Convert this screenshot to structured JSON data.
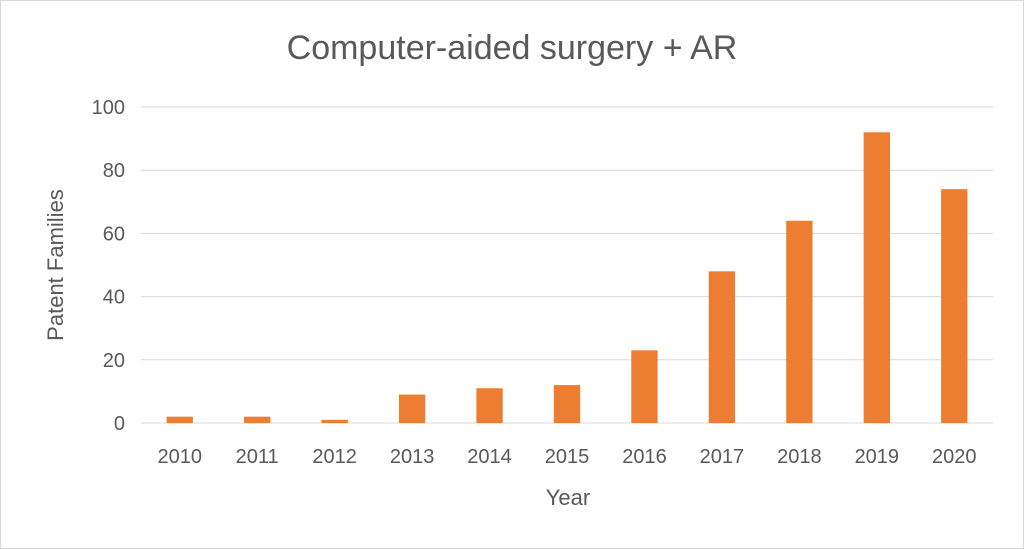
{
  "chart_data": {
    "type": "bar",
    "title": "Computer-aided surgery + AR",
    "xlabel": "Year",
    "ylabel": "Patent Families",
    "categories": [
      "2010",
      "2011",
      "2012",
      "2013",
      "2014",
      "2015",
      "2016",
      "2017",
      "2018",
      "2019",
      "2020"
    ],
    "values": [
      2,
      2,
      1,
      9,
      11,
      12,
      23,
      48,
      64,
      92,
      74
    ],
    "ylim": [
      0,
      100
    ],
    "yticks": [
      0,
      20,
      40,
      60,
      80,
      100
    ],
    "grid": true,
    "legend": "none",
    "bar_color": "#ED7D31"
  }
}
